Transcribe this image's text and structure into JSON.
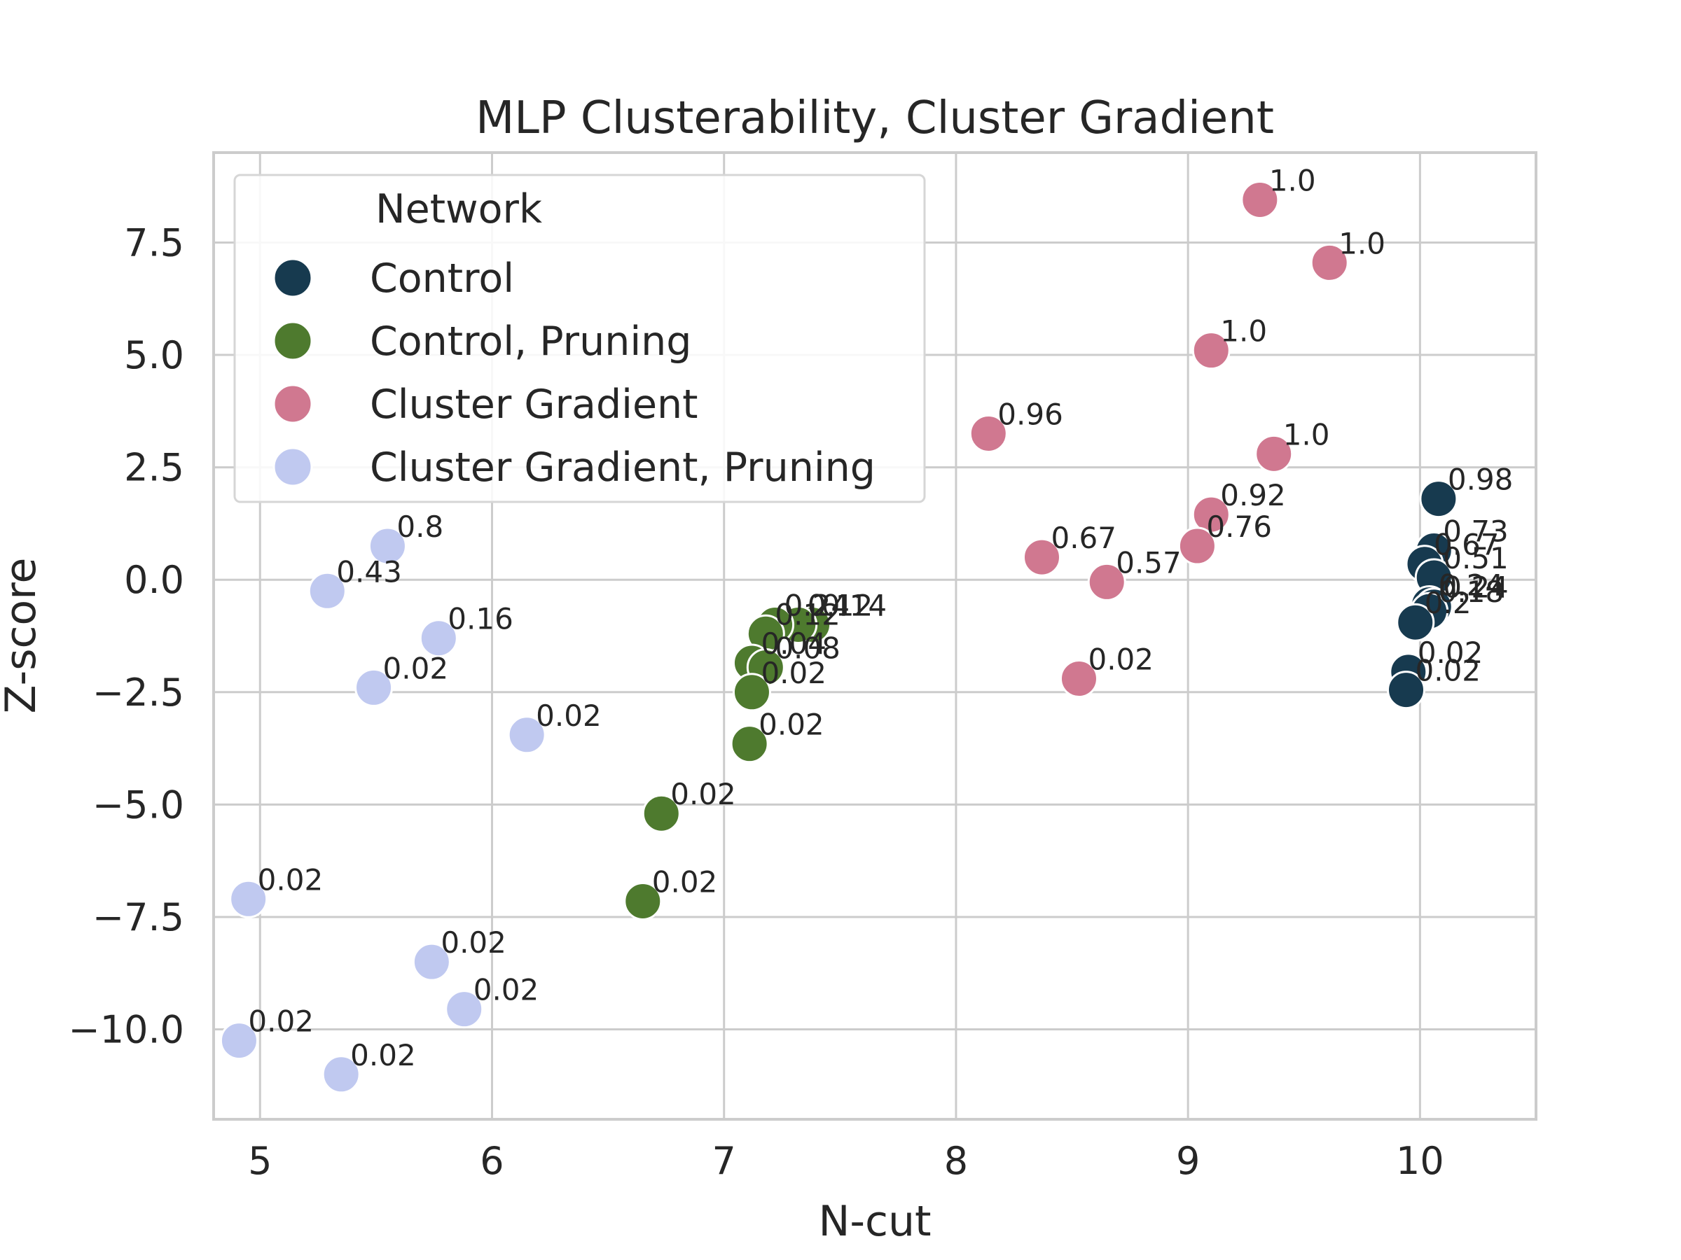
{
  "chart_data": {
    "type": "scatter",
    "title": "MLP Clusterability, Cluster Gradient",
    "xlabel": "N-cut",
    "ylabel": "Z-score",
    "xlim": [
      4.8,
      10.5
    ],
    "ylim": [
      -12,
      9.5
    ],
    "xticks": [
      5,
      6,
      7,
      8,
      9,
      10
    ],
    "xtick_labels": [
      "5",
      "6",
      "7",
      "8",
      "9",
      "10"
    ],
    "yticks": [
      7.5,
      5.0,
      2.5,
      0.0,
      -2.5,
      -5.0,
      -7.5,
      -10.0
    ],
    "ytick_labels": [
      "7.5",
      "5.0",
      "2.5",
      "0.0",
      "−2.5",
      "−5.0",
      "−7.5",
      "−10.0"
    ],
    "grid": true,
    "legend": {
      "title": "Network",
      "location": "upper-left"
    },
    "series": [
      {
        "name": "Control",
        "color": "#173a4f",
        "points": [
          {
            "x": 10.08,
            "y": 1.8,
            "label": "0.98"
          },
          {
            "x": 10.06,
            "y": 0.65,
            "label": "0.73"
          },
          {
            "x": 10.02,
            "y": 0.35,
            "label": "0.67"
          },
          {
            "x": 10.06,
            "y": 0.05,
            "label": "0.51"
          },
          {
            "x": 10.04,
            "y": -0.55,
            "label": "0.24"
          },
          {
            "x": 10.06,
            "y": -0.6,
            "label": "0.24"
          },
          {
            "x": 10.04,
            "y": -0.7,
            "label": "0.18"
          },
          {
            "x": 9.98,
            "y": -0.95,
            "label": "0.2"
          },
          {
            "x": 9.95,
            "y": -2.05,
            "label": "0.02"
          },
          {
            "x": 9.94,
            "y": -2.45,
            "label": "0.02"
          }
        ]
      },
      {
        "name": "Control, Pruning",
        "color": "#4e7a2e",
        "points": [
          {
            "x": 7.38,
            "y": -1.0,
            "label": "0.14"
          },
          {
            "x": 7.32,
            "y": -1.0,
            "label": "0.12"
          },
          {
            "x": 7.22,
            "y": -1.0,
            "label": "0.24"
          },
          {
            "x": 7.18,
            "y": -1.2,
            "label": "0.12"
          },
          {
            "x": 7.12,
            "y": -1.85,
            "label": "0.04"
          },
          {
            "x": 7.18,
            "y": -1.95,
            "label": "0.08"
          },
          {
            "x": 7.12,
            "y": -2.5,
            "label": "0.02"
          },
          {
            "x": 7.11,
            "y": -3.65,
            "label": "0.02"
          },
          {
            "x": 6.73,
            "y": -5.2,
            "label": "0.02"
          },
          {
            "x": 6.65,
            "y": -7.15,
            "label": "0.02"
          }
        ]
      },
      {
        "name": "Cluster Gradient",
        "color": "#d07890",
        "points": [
          {
            "x": 9.31,
            "y": 8.45,
            "label": "1.0"
          },
          {
            "x": 9.61,
            "y": 7.05,
            "label": "1.0"
          },
          {
            "x": 9.1,
            "y": 5.1,
            "label": "1.0"
          },
          {
            "x": 8.14,
            "y": 3.25,
            "label": "0.96"
          },
          {
            "x": 9.37,
            "y": 2.8,
            "label": "1.0"
          },
          {
            "x": 9.1,
            "y": 1.45,
            "label": "0.92"
          },
          {
            "x": 9.04,
            "y": 0.75,
            "label": "0.76"
          },
          {
            "x": 8.37,
            "y": 0.5,
            "label": "0.67"
          },
          {
            "x": 8.65,
            "y": -0.05,
            "label": "0.57"
          },
          {
            "x": 8.53,
            "y": -2.2,
            "label": "0.02"
          }
        ]
      },
      {
        "name": "Cluster Gradient, Pruning",
        "color": "#c0c9f0",
        "points": [
          {
            "x": 5.55,
            "y": 0.75,
            "label": "0.8"
          },
          {
            "x": 5.29,
            "y": -0.25,
            "label": "0.43"
          },
          {
            "x": 5.77,
            "y": -1.3,
            "label": "0.16"
          },
          {
            "x": 5.49,
            "y": -2.4,
            "label": "0.02"
          },
          {
            "x": 6.15,
            "y": -3.45,
            "label": "0.02"
          },
          {
            "x": 4.95,
            "y": -7.1,
            "label": "0.02"
          },
          {
            "x": 5.74,
            "y": -8.5,
            "label": "0.02"
          },
          {
            "x": 5.88,
            "y": -9.55,
            "label": "0.02"
          },
          {
            "x": 4.91,
            "y": -10.25,
            "label": "0.02"
          },
          {
            "x": 5.35,
            "y": -11.0,
            "label": "0.02"
          }
        ]
      }
    ]
  }
}
